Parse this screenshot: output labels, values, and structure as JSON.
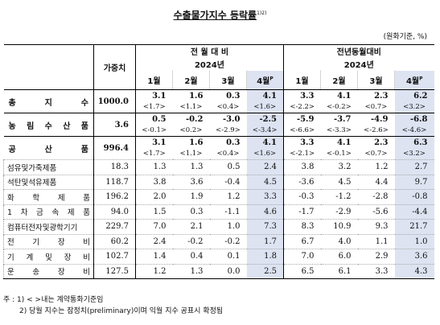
{
  "title": "수출물가지수 등락률",
  "title_sup": "1)2)",
  "unit": "(원화기준, %)",
  "header": {
    "weight": "가중치",
    "mom": "전 월 대 비",
    "yoy": "전년동월대비",
    "year": "2024년",
    "months": [
      "1월",
      "2월",
      "3월",
      "4월"
    ],
    "prelim_mark": "P"
  },
  "rows": [
    {
      "name": "총 지 수",
      "weight": "1000.0",
      "mom": [
        "3.1",
        "1.6",
        "0.3",
        "4.1"
      ],
      "mom_p": [
        "<1.7>",
        "<1.1>",
        "<0.4>",
        "<1.6>"
      ],
      "yoy": [
        "3.3",
        "4.1",
        "2.3",
        "6.2"
      ],
      "yoy_p": [
        "<-2.2>",
        "<-0.2>",
        "<0.7>",
        "<3.2>"
      ]
    },
    {
      "name": "농 림 수 산 품",
      "weight": "3.6",
      "mom": [
        "0.5",
        "-0.2",
        "-3.0",
        "-2.5"
      ],
      "mom_p": [
        "<-0.1>",
        "<0.2>",
        "<-2.9>",
        "<-3.4>"
      ],
      "yoy": [
        "-5.9",
        "-3.7",
        "-4.9",
        "-6.8"
      ],
      "yoy_p": [
        "<-6.6>",
        "<-3.3>",
        "<-2.6>",
        "<-4.6>"
      ]
    },
    {
      "name": "공 산 품",
      "weight": "996.4",
      "mom": [
        "3.1",
        "1.6",
        "0.3",
        "4.1"
      ],
      "mom_p": [
        "<1.7>",
        "<1.1>",
        "<0.4>",
        "<1.6>"
      ],
      "yoy": [
        "3.3",
        "4.1",
        "2.3",
        "6.3"
      ],
      "yoy_p": [
        "<-2.1>",
        "<-0.1>",
        "<0.7>",
        "<3.2>"
      ]
    }
  ],
  "subrows": [
    {
      "name": "섬유및가죽제품",
      "weight": "18.3",
      "mom": [
        "1.3",
        "1.3",
        "0.5",
        "2.4"
      ],
      "yoy": [
        "3.8",
        "3.2",
        "1.2",
        "2.7"
      ]
    },
    {
      "name": "석탄및석유제품",
      "weight": "118.7",
      "mom": [
        "3.8",
        "3.6",
        "-0.4",
        "4.5"
      ],
      "yoy": [
        "-3.6",
        "4.5",
        "4.4",
        "9.7"
      ]
    },
    {
      "name": "화 학 제 품",
      "weight": "196.2",
      "mom": [
        "2.0",
        "1.9",
        "1.2",
        "3.3"
      ],
      "yoy": [
        "-0.3",
        "-1.2",
        "-2.8",
        "-0.8"
      ]
    },
    {
      "name": "1 차 금 속 제 품",
      "weight": "94.0",
      "mom": [
        "1.5",
        "0.3",
        "-1.1",
        "4.6"
      ],
      "yoy": [
        "-1.7",
        "-2.9",
        "-5.6",
        "-4.4"
      ]
    },
    {
      "name": "컴퓨터전자및광학기기",
      "weight": "229.7",
      "mom": [
        "7.0",
        "2.1",
        "1.0",
        "7.3"
      ],
      "yoy": [
        "8.3",
        "10.9",
        "9.3",
        "21.7"
      ]
    },
    {
      "name": "전 기 장 비",
      "weight": "60.2",
      "mom": [
        "2.4",
        "-0.2",
        "-0.2",
        "1.7"
      ],
      "yoy": [
        "6.7",
        "4.0",
        "1.1",
        "1.0"
      ]
    },
    {
      "name": "기 계 및 장 비",
      "weight": "102.7",
      "mom": [
        "1.4",
        "0.4",
        "0.1",
        "1.8"
      ],
      "yoy": [
        "7.0",
        "6.0",
        "2.9",
        "3.6"
      ]
    },
    {
      "name": "운 송 장 비",
      "weight": "127.5",
      "mom": [
        "1.2",
        "1.3",
        "0.0",
        "2.5"
      ],
      "yoy": [
        "6.5",
        "6.1",
        "3.3",
        "4.3"
      ]
    }
  ],
  "notes": [
    "주 : 1) < >내는 계약통화기준임",
    "2) 당월 지수는 잠정치(preliminary)이며 익월 지수 공표시 확정됨"
  ]
}
